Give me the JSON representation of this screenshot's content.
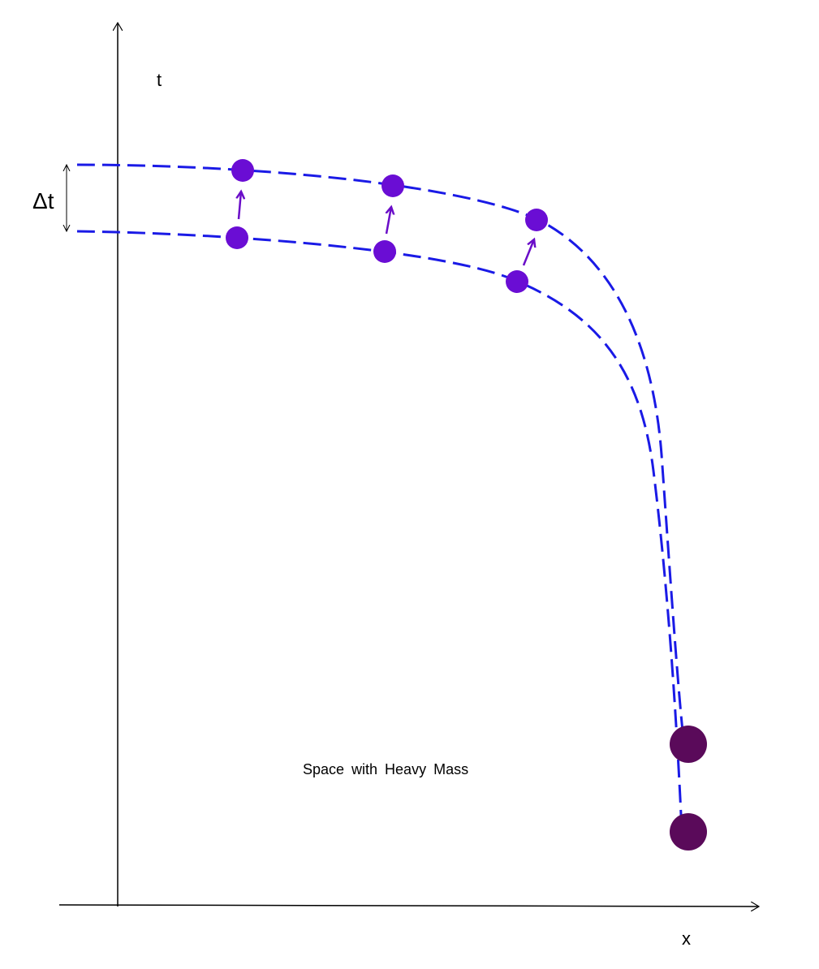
{
  "axes": {
    "t": "t",
    "x": "x"
  },
  "interval_label": "Δt",
  "caption": "Space with Heavy Mass"
}
